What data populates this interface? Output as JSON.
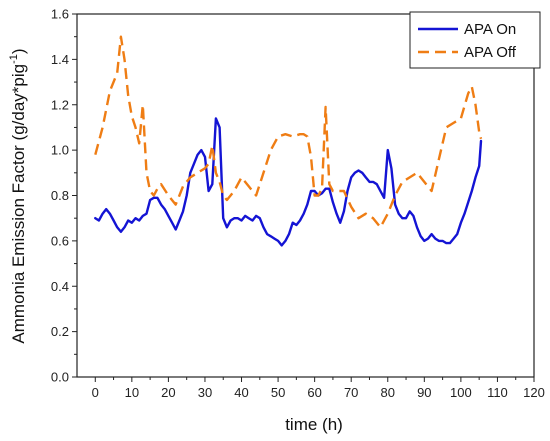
{
  "chart_data": {
    "type": "line",
    "xlabel": "time (h)",
    "ylabel_main": "Ammonia Emission Factor (g/day*pig",
    "ylabel_sup": "-1",
    "ylabel_close": ")",
    "xlim": [
      -5,
      120
    ],
    "ylim": [
      0,
      1.6
    ],
    "x_ticks": [
      0,
      10,
      20,
      30,
      40,
      50,
      60,
      70,
      80,
      90,
      100,
      110,
      120
    ],
    "y_ticks": [
      0.0,
      0.2,
      0.4,
      0.6,
      0.8,
      1.0,
      1.2,
      1.4,
      1.6
    ],
    "y_tick_labels": [
      "0.0",
      "0.2",
      "0.4",
      "0.6",
      "0.8",
      "1.0",
      "1.2",
      "1.4",
      "1.6"
    ],
    "legend_position": "top-right",
    "grid": false,
    "series": [
      {
        "name": "APA On",
        "color": "#1414d4",
        "style": "solid",
        "x": [
          0,
          1,
          2,
          3,
          4,
          5,
          6,
          7,
          8,
          9,
          10,
          11,
          12,
          13,
          14,
          15,
          16,
          17,
          18,
          19,
          20,
          21,
          22,
          23,
          24,
          25,
          26,
          27,
          28,
          29,
          30,
          31,
          32,
          33,
          34,
          35,
          36,
          37,
          38,
          39,
          40,
          41,
          42,
          43,
          44,
          45,
          46,
          47,
          48,
          49,
          50,
          51,
          52,
          53,
          54,
          55,
          56,
          57,
          58,
          59,
          60,
          61,
          62,
          63,
          64,
          65,
          66,
          67,
          68,
          69,
          70,
          71,
          72,
          73,
          74,
          75,
          76,
          77,
          78,
          79,
          80,
          81,
          82,
          83,
          84,
          85,
          86,
          87,
          88,
          89,
          90,
          91,
          92,
          93,
          94,
          95,
          96,
          97,
          98,
          99,
          100,
          101,
          102,
          103,
          104,
          105,
          105.5
        ],
        "y": [
          0.7,
          0.69,
          0.72,
          0.74,
          0.72,
          0.69,
          0.66,
          0.64,
          0.66,
          0.69,
          0.68,
          0.7,
          0.69,
          0.71,
          0.72,
          0.78,
          0.79,
          0.79,
          0.76,
          0.74,
          0.71,
          0.68,
          0.65,
          0.69,
          0.73,
          0.8,
          0.9,
          0.94,
          0.98,
          1.0,
          0.97,
          0.82,
          0.85,
          1.14,
          1.1,
          0.7,
          0.66,
          0.69,
          0.7,
          0.7,
          0.69,
          0.71,
          0.7,
          0.69,
          0.71,
          0.7,
          0.66,
          0.63,
          0.62,
          0.61,
          0.6,
          0.58,
          0.6,
          0.63,
          0.68,
          0.67,
          0.69,
          0.72,
          0.76,
          0.82,
          0.82,
          0.8,
          0.81,
          0.83,
          0.83,
          0.77,
          0.72,
          0.68,
          0.73,
          0.82,
          0.88,
          0.9,
          0.91,
          0.9,
          0.88,
          0.86,
          0.86,
          0.85,
          0.82,
          0.79,
          1.0,
          0.92,
          0.76,
          0.72,
          0.7,
          0.7,
          0.73,
          0.71,
          0.66,
          0.62,
          0.6,
          0.61,
          0.63,
          0.61,
          0.6,
          0.6,
          0.59,
          0.59,
          0.61,
          0.63,
          0.68,
          0.72,
          0.77,
          0.82,
          0.88,
          0.93,
          1.04
        ]
      },
      {
        "name": "APA Off",
        "color": "#ef7d14",
        "style": "dashed",
        "x": [
          0,
          2,
          4,
          6,
          7,
          8,
          9,
          10,
          11,
          12,
          13,
          14,
          15,
          16,
          17,
          18,
          20,
          22,
          23,
          24,
          26,
          28,
          30,
          31,
          32,
          33,
          34,
          35,
          36,
          38,
          40,
          42,
          44,
          46,
          48,
          50,
          52,
          54,
          56,
          57,
          58,
          59,
          60,
          61,
          62,
          63,
          64,
          65,
          66,
          68,
          70,
          72,
          74,
          76,
          78,
          80,
          82,
          84,
          86,
          88,
          90,
          92,
          94,
          96,
          98,
          100,
          102,
          103,
          104,
          105,
          105.5
        ],
        "y": [
          0.98,
          1.1,
          1.26,
          1.34,
          1.5,
          1.4,
          1.24,
          1.15,
          1.1,
          1.03,
          1.2,
          0.9,
          0.82,
          0.8,
          0.83,
          0.85,
          0.8,
          0.76,
          0.8,
          0.84,
          0.88,
          0.9,
          0.92,
          0.94,
          1.02,
          0.9,
          0.86,
          0.8,
          0.78,
          0.82,
          0.88,
          0.84,
          0.8,
          0.9,
          1.0,
          1.06,
          1.07,
          1.06,
          1.07,
          1.07,
          1.06,
          0.97,
          0.8,
          0.8,
          0.83,
          1.19,
          0.85,
          0.82,
          0.82,
          0.82,
          0.75,
          0.7,
          0.72,
          0.7,
          0.66,
          0.72,
          0.8,
          0.86,
          0.88,
          0.9,
          0.86,
          0.82,
          0.96,
          1.1,
          1.12,
          1.14,
          1.25,
          1.28,
          1.2,
          1.08,
          1.05
        ]
      }
    ]
  }
}
